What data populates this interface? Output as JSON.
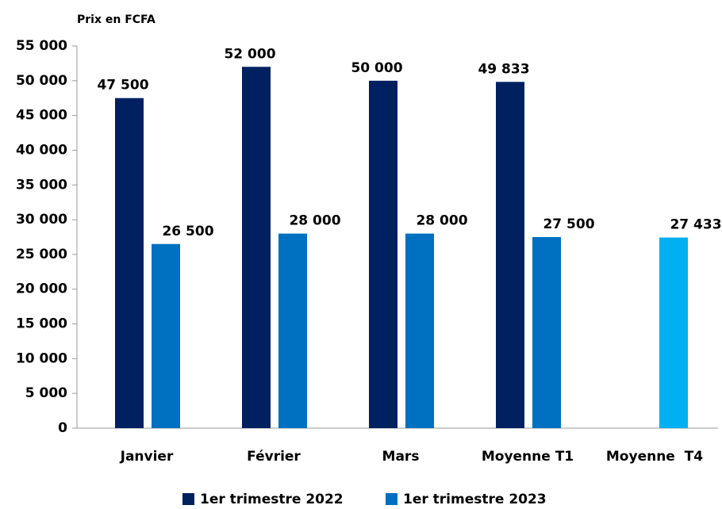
{
  "chart_data": {
    "type": "bar",
    "title": "Prix en FCFA",
    "categories": [
      "Janvier",
      "Février",
      "Mars",
      "Moyenne T1",
      "Moyenne  T4"
    ],
    "series": [
      {
        "name": "1er trimestre 2022",
        "color": "#002060",
        "values": [
          47500,
          52000,
          50000,
          49833,
          null
        ],
        "value_labels": [
          "47 500",
          "52 000",
          "50 000",
          "49 833",
          null
        ]
      },
      {
        "name": "1er trimestre 2023",
        "color": "#0070c0",
        "colors": [
          "#0070c0",
          "#0070c0",
          "#0070c0",
          "#0070c0",
          "#00b0f0"
        ],
        "values": [
          26500,
          28000,
          28000,
          27500,
          27433
        ],
        "value_labels": [
          "26 500",
          "28 000",
          "28 000",
          "27 500",
          "27 433"
        ]
      }
    ],
    "ylim": [
      0,
      55000
    ],
    "yticks": [
      0,
      {
        "value": 5000,
        "label": "5 000"
      },
      {
        "value": 10000,
        "label": "10 000"
      },
      {
        "value": 15000,
        "label": "15 000"
      },
      {
        "value": 20000,
        "label": "20 000"
      },
      {
        "value": 25000,
        "label": "25 000"
      },
      {
        "value": 30000,
        "label": "30 000"
      },
      {
        "value": 35000,
        "label": "35 000"
      },
      {
        "value": 40000,
        "label": "40 000"
      },
      {
        "value": 45000,
        "label": "45 000"
      },
      {
        "value": 50000,
        "label": "50 000"
      },
      {
        "value": 55000,
        "label": "55 000"
      }
    ],
    "grid": false,
    "legend": "bottom"
  }
}
